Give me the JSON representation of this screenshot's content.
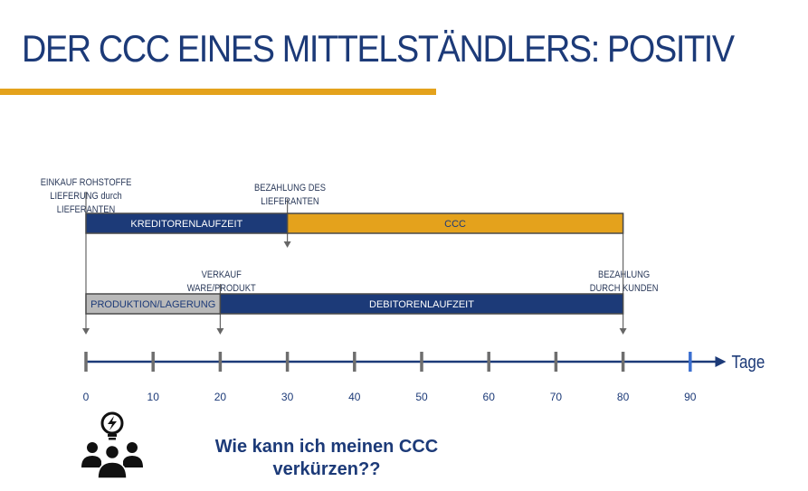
{
  "title": "DER CCC EINES MITTELSTÄNDLERS:  POSITIV",
  "colors": {
    "navy": "#1c3a78",
    "gold": "#e4a21c",
    "grey": "#b9b9b9",
    "line": "#666666"
  },
  "annotations": {
    "purchase": "EINKAUF ROHSTOFFE\nLIEFERUNG durch LIEFERANTEN",
    "supplier_payment": "BEZAHLUNG DES\nLIEFERANTEN",
    "sale": "VERKAUF\nWARE/PRODUKT",
    "customer_payment": "BEZAHLUNG\nDURCH KUNDEN"
  },
  "axis": {
    "label": "Tage",
    "ticks": [
      0,
      10,
      20,
      30,
      40,
      50,
      60,
      70,
      80,
      90
    ]
  },
  "bars": [
    {
      "label": "KREDITORENLAUFZEIT",
      "start": 0,
      "end": 30,
      "row": 1,
      "color": "navy"
    },
    {
      "label": "CCC",
      "start": 30,
      "end": 80,
      "row": 1,
      "color": "gold"
    },
    {
      "label": "PRODUKTION/LAGERUNG",
      "start": 0,
      "end": 20,
      "row": 2,
      "color": "grey"
    },
    {
      "label": "DEBITORENLAUFZEIT",
      "start": 20,
      "end": 80,
      "row": 2,
      "color": "navy"
    }
  ],
  "question": "Wie kann ich meinen CCC\nverkürzen??",
  "icon": "team-idea-icon"
}
